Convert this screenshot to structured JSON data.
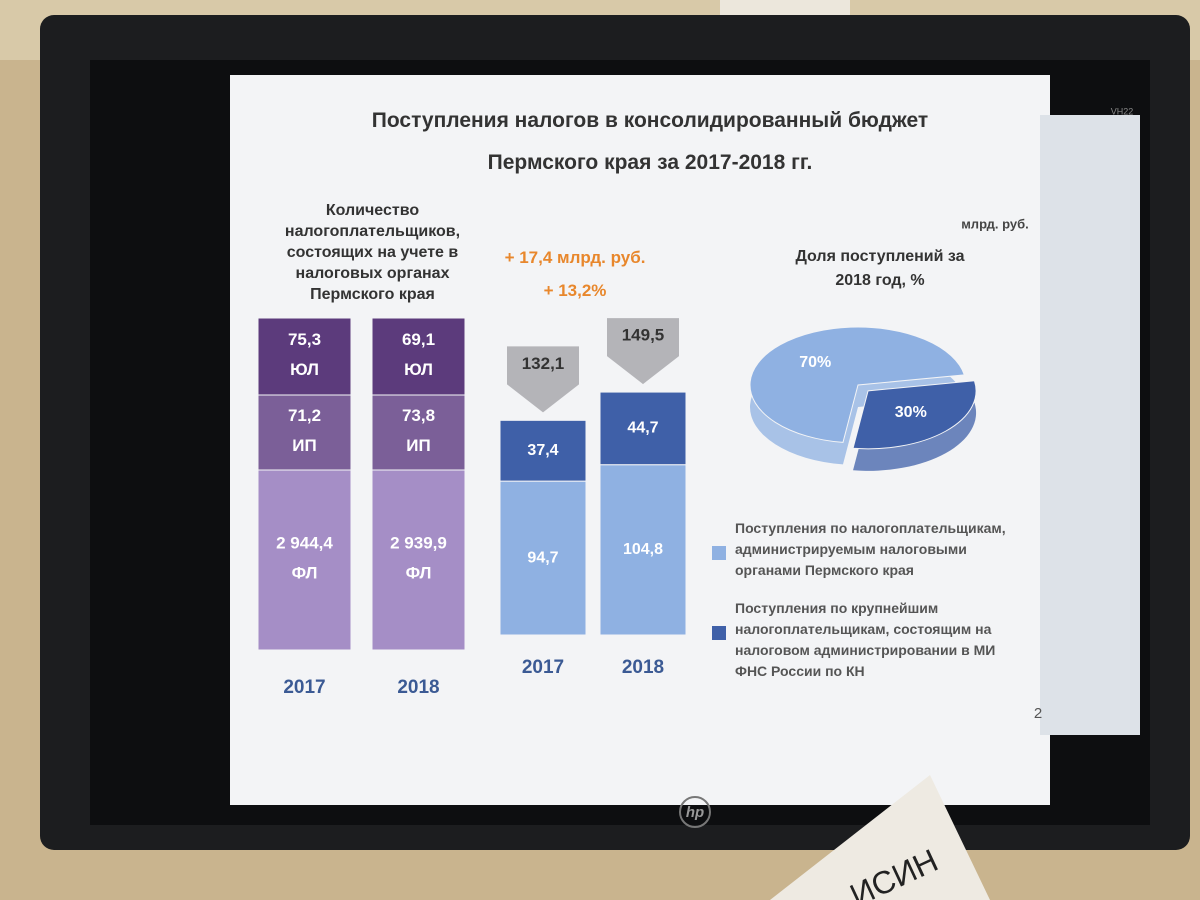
{
  "slide": {
    "title": "Поступления налогов в консолидированный бюджет Пермского края за 2017-2018 гг.",
    "unit": "млрд. руб.",
    "page": "2",
    "monitor_brand": "hp",
    "monitor_model": "VH22",
    "name_plate": "ИСИН"
  },
  "chart_data": [
    {
      "type": "tiles",
      "title": "Количество налогоплательщиков, состоящих на учете в налоговых органах Пермского края",
      "categories": [
        "2017",
        "2018"
      ],
      "series": [
        {
          "name": "ФЛ",
          "color": "#a58ec6",
          "values": [
            2944.4,
            2939.9
          ],
          "value_labels": [
            "2 944,4",
            "2 939,9"
          ]
        },
        {
          "name": "ИП",
          "color": "#7b5f98",
          "values": [
            71.2,
            73.8
          ],
          "value_labels": [
            "71,2",
            "73,8"
          ]
        },
        {
          "name": "ЮЛ",
          "color": "#5c3b7c",
          "values": [
            75.3,
            69.1
          ],
          "value_labels": [
            "75,3",
            "69,1"
          ]
        }
      ]
    },
    {
      "type": "stacked-bar",
      "categories": [
        "2017",
        "2018"
      ],
      "series": [
        {
          "name": "Поступления по налогоплательщикам, администрируемым налоговыми органами Пермского края",
          "color": "#8fb1e2",
          "values": [
            94.7,
            104.8
          ],
          "value_labels": [
            "94,7",
            "104,8"
          ]
        },
        {
          "name": "Поступления по крупнейшим налогоплательщикам, состоящим на налоговом администрировании в МИ ФНС России по КН",
          "color": "#3f60a8",
          "values": [
            37.4,
            44.7
          ],
          "value_labels": [
            "37,4",
            "44,7"
          ]
        }
      ],
      "totals": [
        132.1,
        149.5
      ],
      "total_labels": [
        "132,1",
        "149,5"
      ],
      "annotations": [
        "+ 17,4 млрд. руб.",
        "+ 13,2%"
      ]
    },
    {
      "type": "pie",
      "title": "Доля поступлений за 2018 год, %",
      "values": [
        70,
        30
      ],
      "value_labels": [
        "70%",
        "30%"
      ],
      "colors": [
        "#8fb1e2",
        "#3f60a8"
      ]
    }
  ]
}
